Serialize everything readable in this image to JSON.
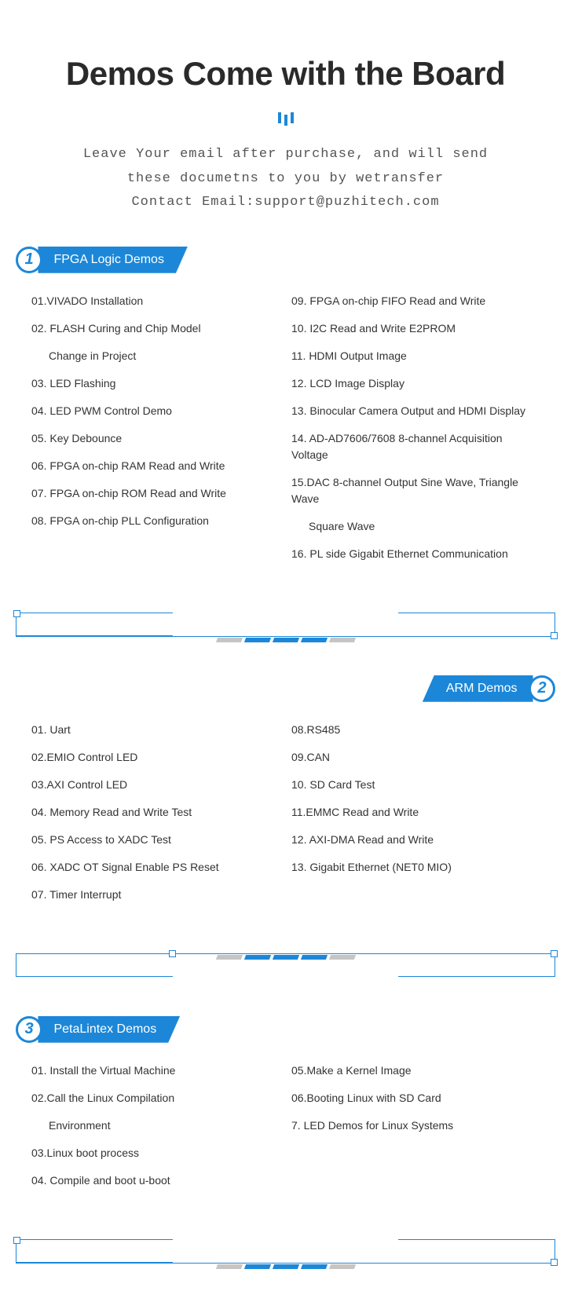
{
  "colors": {
    "accent": "#1c87d8",
    "text": "#333333",
    "title": "#2a2a2a",
    "muted": "#555555",
    "gray": "#c5c5c5",
    "background": "#ffffff"
  },
  "title": "Demos Come with the Board",
  "subtitle": {
    "line1": "Leave Your email after purchase, and will send",
    "line2": "these documetns to you by wetransfer",
    "line3": "Contact Email:support@puzhitech.com"
  },
  "sections": [
    {
      "number": "1",
      "label": "FPGA Logic Demos",
      "align": "left",
      "col1": [
        "01.VIVADO Installation",
        "02. FLASH Curing and Chip Model",
        "      Change in Project",
        "03. LED Flashing",
        "04. LED PWM Control Demo",
        "05. Key Debounce",
        "06. FPGA on-chip RAM Read and Write",
        "07. FPGA on-chip ROM Read and Write",
        "08. FPGA on-chip PLL Configuration"
      ],
      "col2": [
        "09. FPGA on-chip FIFO Read and Write",
        "10. I2C Read and Write E2PROM",
        "11. HDMI Output Image",
        "12. LCD Image Display",
        "13. Binocular Camera Output and HDMI Display",
        "14. AD-AD7606/7608 8-channel Acquisition Voltage",
        "15.DAC 8-channel Output Sine Wave, Triangle Wave",
        "     Square Wave",
        "16. PL side Gigabit Ethernet Communication"
      ]
    },
    {
      "number": "2",
      "label": "ARM Demos",
      "align": "right",
      "col1": [
        "01. Uart",
        "02.EMIO Control LED",
        "03.AXI Control LED",
        "04. Memory Read and Write Test",
        "05. PS Access to XADC Test",
        "06. XADC OT Signal Enable PS Reset",
        "07. Timer Interrupt"
      ],
      "col2": [
        "08.RS485",
        "09.CAN",
        "10. SD Card Test",
        "11.EMMC Read and Write",
        "12. AXI-DMA Read and Write",
        "13. Gigabit Ethernet (NET0 MIO)"
      ]
    },
    {
      "number": "3",
      "label": "PetaLintex Demos",
      "align": "left",
      "col1": [
        "01. Install the Virtual Machine",
        "02.Call the Linux Compilation",
        "     Environment",
        "03.Linux boot process",
        "04. Compile and boot u-boot"
      ],
      "col2": [
        "05.Make a Kernel Image",
        "06.Booting Linux with SD Card",
        "7. LED Demos for Linux Systems"
      ]
    }
  ]
}
